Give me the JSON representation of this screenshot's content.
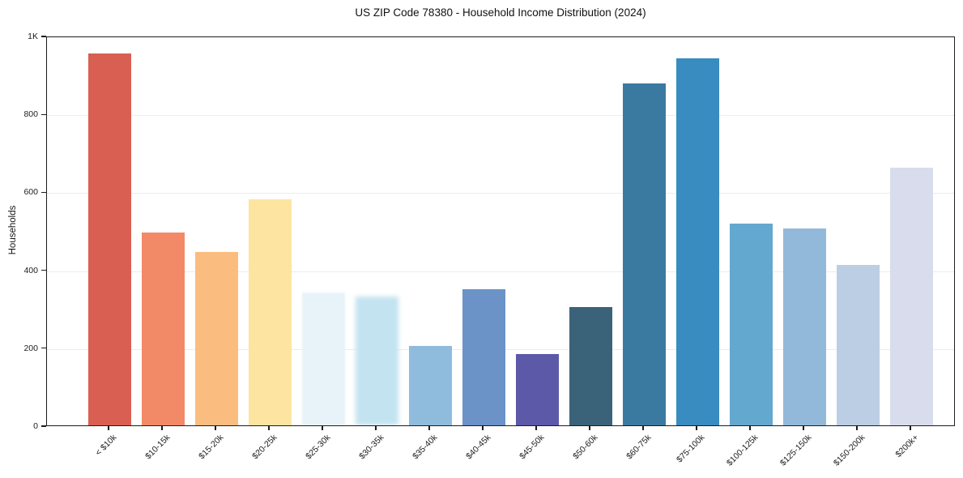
{
  "chart_data": {
    "type": "bar",
    "title": "US ZIP Code 78380 - Household Income Distribution (2024)",
    "xlabel": "",
    "ylabel": "Households",
    "ylim": [
      0,
      1000
    ],
    "grid": "horizontal-light",
    "legend": "none",
    "categories": [
      "< $10k",
      "$10-15k",
      "$15-20k",
      "$20-25k",
      "$25-30k",
      "$30-35k",
      "$35-40k",
      "$40-45k",
      "$45-50k",
      "$50-60k",
      "$60-75k",
      "$75-100k",
      "$100-125k",
      "$125-150k",
      "$150-200k",
      "$200k+"
    ],
    "values": [
      955,
      494,
      444,
      580,
      340,
      331,
      203,
      350,
      182,
      303,
      878,
      941,
      518,
      506,
      411,
      662
    ],
    "bar_colors": [
      "#d95f52",
      "#f28a68",
      "#fbbd7f",
      "#fde4a0",
      "#e7f3f9",
      "#c3e3f0",
      "#8fbcdd",
      "#6b93c7",
      "#5c59a9",
      "#3a6379",
      "#3a7aa0",
      "#388cc0",
      "#62a8cf",
      "#92b9d9",
      "#bccee4",
      "#d8dcec"
    ],
    "yticks": [
      {
        "label": "0",
        "value": 0
      },
      {
        "label": "200",
        "value": 200
      },
      {
        "label": "400",
        "value": 400
      },
      {
        "label": "600",
        "value": 600
      },
      {
        "label": "800",
        "value": 800
      },
      {
        "label": "1K",
        "value": 1000
      }
    ]
  }
}
